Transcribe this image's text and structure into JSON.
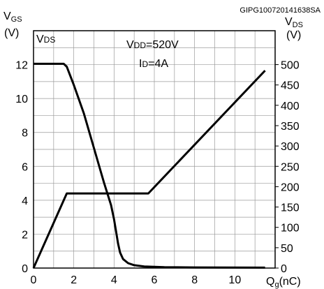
{
  "figure_id": "GIPG100720141638SA",
  "chart_data": {
    "type": "line",
    "title": "",
    "x": {
      "label_main": "Q",
      "label_sub": "g",
      "label_unit": "(nC)",
      "range": [
        0,
        12
      ],
      "ticks": [
        0,
        2,
        4,
        6,
        8,
        10
      ]
    },
    "y_left": {
      "label_main": "V",
      "label_sub": "GS",
      "unit": "(V)",
      "range": [
        0,
        14
      ],
      "ticks": [
        0,
        2,
        4,
        6,
        8,
        10,
        12
      ]
    },
    "y_right": {
      "label_main": "V",
      "label_sub": "DS",
      "unit": "(V)",
      "range": [
        0,
        583.3
      ],
      "ticks": [
        0,
        50,
        100,
        150,
        200,
        250,
        300,
        350,
        400,
        450,
        500
      ]
    },
    "grid": true,
    "annotations": [
      {
        "main": "V",
        "sub": "DS",
        "rest": ""
      },
      {
        "main": "V",
        "sub": "DD",
        "rest": "=520V"
      },
      {
        "main": "I",
        "sub": "D",
        "rest": "=4A"
      }
    ],
    "series": [
      {
        "axis": "left",
        "color": "#000000",
        "points": [
          [
            0,
            0
          ],
          [
            1.65,
            4.4
          ],
          [
            5.7,
            4.4
          ],
          [
            11.5,
            11.65
          ]
        ]
      },
      {
        "axis": "right",
        "color": "#000000",
        "points": [
          [
            0,
            502
          ],
          [
            1.5,
            502
          ],
          [
            1.65,
            495
          ],
          [
            2.0,
            450
          ],
          [
            2.5,
            380
          ],
          [
            3.0,
            295
          ],
          [
            3.5,
            210
          ],
          [
            3.85,
            155
          ],
          [
            4.0,
            120
          ],
          [
            4.1,
            90
          ],
          [
            4.2,
            60
          ],
          [
            4.3,
            38
          ],
          [
            4.45,
            22
          ],
          [
            4.7,
            12
          ],
          [
            5.0,
            7
          ],
          [
            5.5,
            4
          ],
          [
            6.5,
            2
          ],
          [
            8,
            1.5
          ],
          [
            11.5,
            1
          ]
        ]
      }
    ]
  }
}
